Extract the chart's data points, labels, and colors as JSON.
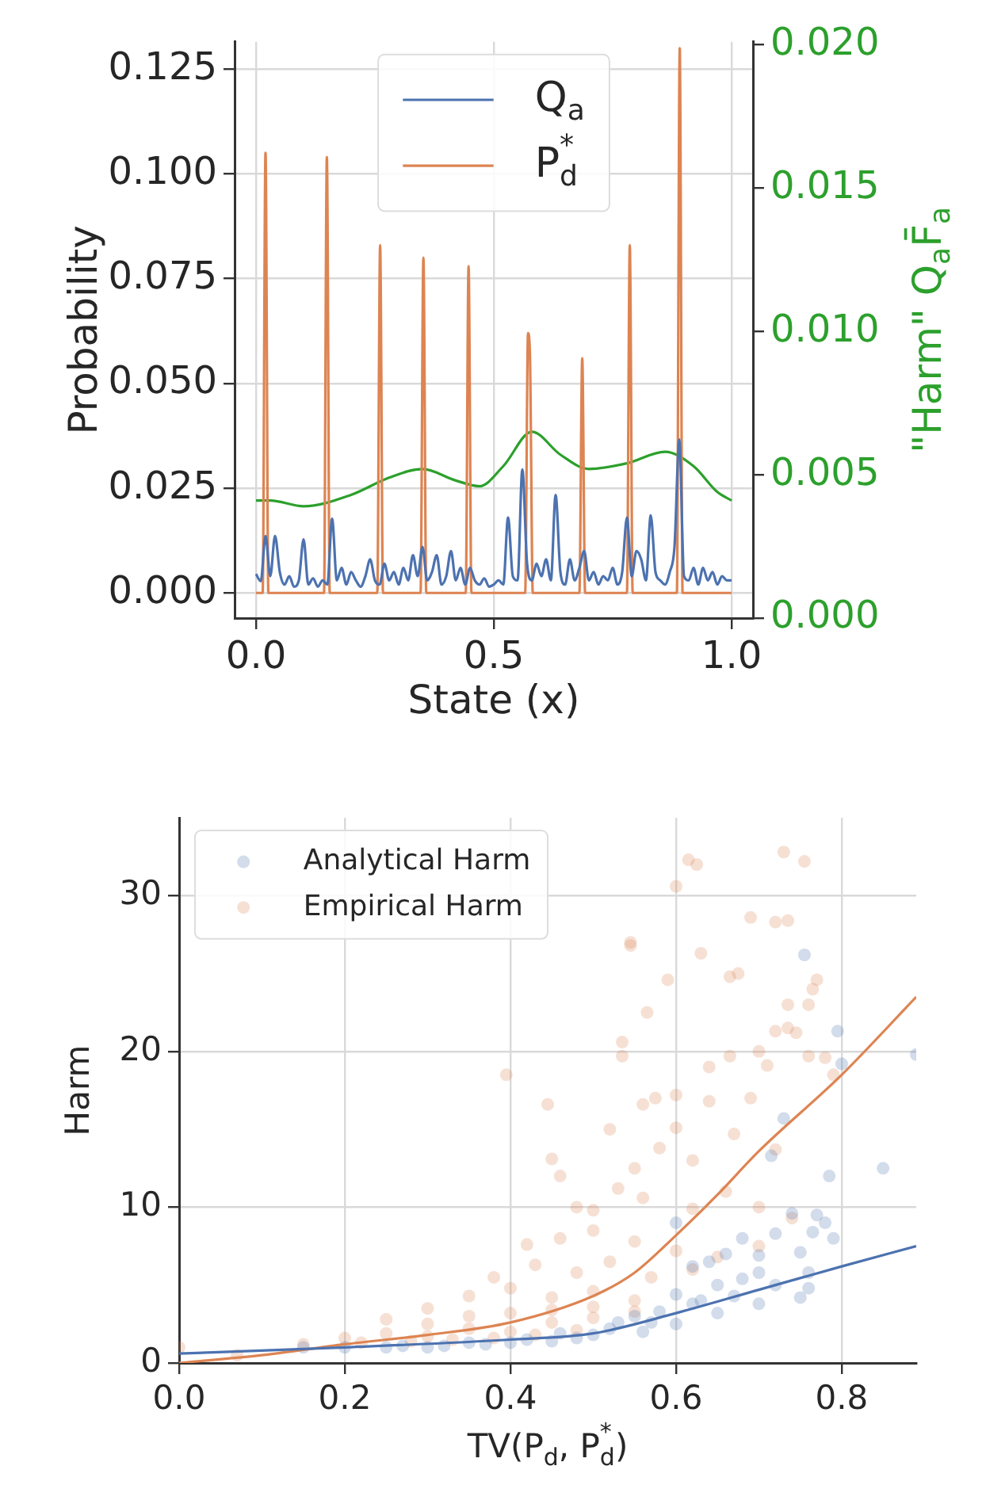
{
  "chart_data": [
    {
      "type": "line",
      "xlabel": "State (x)",
      "ylabel": "Probability",
      "y2label": "\"Harm\" Q$_{a}$F̄$_{a}$",
      "xlim": [
        -0.045,
        1.045
      ],
      "xticks": [
        {
          "value": 0,
          "label": "0.0"
        },
        {
          "value": 0.5,
          "label": "0.5"
        },
        {
          "value": 1,
          "label": "1.0"
        }
      ],
      "ylim": [
        -0.006,
        0.1315
      ],
      "yticks": [
        {
          "value": 0,
          "label": "0.000"
        },
        {
          "value": 0.025,
          "label": "0.025"
        },
        {
          "value": 0.05,
          "label": "0.050"
        },
        {
          "value": 0.075,
          "label": "0.075"
        },
        {
          "value": 0.1,
          "label": "0.100"
        },
        {
          "value": 0.125,
          "label": "0.125"
        }
      ],
      "y2lim": [
        0,
        0.0201
      ],
      "y2ticks": [
        {
          "value": 0,
          "label": "0.000"
        },
        {
          "value": 0.005,
          "label": "0.005"
        },
        {
          "value": 0.01,
          "label": "0.010"
        },
        {
          "value": 0.015,
          "label": "0.015"
        },
        {
          "value": 0.02,
          "label": "0.020"
        }
      ],
      "grid": true,
      "legend": "top",
      "marker": "none",
      "series": [
        {
          "name": "Q$_{a}$",
          "color": "#4c72b0",
          "x": [
            0,
            0.01,
            0.02,
            0.03,
            0.04,
            0.05,
            0.06,
            0.07,
            0.08,
            0.09,
            0.1,
            0.11,
            0.12,
            0.13,
            0.14,
            0.15,
            0.16,
            0.17,
            0.18,
            0.19,
            0.2,
            0.21,
            0.22,
            0.23,
            0.24,
            0.25,
            0.26,
            0.27,
            0.28,
            0.29,
            0.3,
            0.31,
            0.32,
            0.33,
            0.34,
            0.35,
            0.36,
            0.37,
            0.38,
            0.39,
            0.4,
            0.41,
            0.42,
            0.43,
            0.44,
            0.45,
            0.46,
            0.47,
            0.48,
            0.49,
            0.5,
            0.51,
            0.52,
            0.53,
            0.54,
            0.55,
            0.56,
            0.57,
            0.58,
            0.59,
            0.6,
            0.61,
            0.62,
            0.63,
            0.64,
            0.65,
            0.66,
            0.67,
            0.68,
            0.69,
            0.7,
            0.71,
            0.72,
            0.73,
            0.74,
            0.75,
            0.76,
            0.77,
            0.78,
            0.79,
            0.8,
            0.81,
            0.82,
            0.83,
            0.84,
            0.85,
            0.86,
            0.87,
            0.88,
            0.89,
            0.9,
            0.91,
            0.92,
            0.93,
            0.94,
            0.95,
            0.96,
            0.97,
            0.98,
            0.99,
            1
          ],
          "values": [
            0.0045,
            0.0028,
            0.0136,
            0.004,
            0.0136,
            0.005,
            0.002,
            0.004,
            0.0015,
            0.003,
            0.0128,
            0.002,
            0.0035,
            0.0015,
            0.003,
            0.002,
            0.0177,
            0.003,
            0.006,
            0.002,
            0.005,
            0.003,
            0.0015,
            0.004,
            0.008,
            0.003,
            0.002,
            0.007,
            0.003,
            0.005,
            0.002,
            0.006,
            0.003,
            0.009,
            0.004,
            0.011,
            0.003,
            0.005,
            0.009,
            0.002,
            0.004,
            0.01,
            0.003,
            0.006,
            0.002,
            0.006,
            0.003,
            0.002,
            0.0035,
            0.0015,
            0.002,
            0.003,
            0.002,
            0.018,
            0.004,
            0.003,
            0.0295,
            0.007,
            0.003,
            0.007,
            0.004,
            0.008,
            0.003,
            0.0234,
            0.005,
            0.002,
            0.008,
            0.003,
            0.006,
            0.01,
            0.003,
            0.005,
            0.002,
            0.004,
            0.003,
            0.006,
            0.002,
            0.005,
            0.018,
            0.004,
            0.01,
            0.008,
            0.003,
            0.0185,
            0.005,
            0.003,
            0.002,
            0.005,
            0.011,
            0.0366,
            0.004,
            0.003,
            0.006,
            0.002,
            0.006,
            0.003,
            0.005,
            0.002,
            0.004,
            0.003,
            0.003
          ]
        },
        {
          "name": "P$_{d}$$^{*}$",
          "color": "#dd8452",
          "x": [
            0,
            0.014,
            0.02,
            0.026,
            0.143,
            0.149,
            0.155,
            0.255,
            0.261,
            0.267,
            0.346,
            0.352,
            0.358,
            0.441,
            0.447,
            0.453,
            0.566,
            0.572,
            0.576,
            0.582,
            0.68,
            0.686,
            0.692,
            0.78,
            0.786,
            0.792,
            0.885,
            0.891,
            0.897,
            1
          ],
          "values": [
            0,
            0,
            0.105,
            0,
            0,
            0.104,
            0,
            0,
            0.083,
            0,
            0,
            0.08,
            0,
            0,
            0.078,
            0,
            0,
            0.062,
            0.057,
            0,
            0,
            0.056,
            0,
            0,
            0.083,
            0,
            0,
            0.13,
            0,
            0
          ]
        },
        {
          "color": "#2ca02c",
          "axis": "y2",
          "x": [
            0,
            0.03,
            0.1,
            0.2,
            0.28,
            0.35,
            0.42,
            0.47,
            0.52,
            0.58,
            0.64,
            0.7,
            0.78,
            0.86,
            0.92,
            0.97,
            1
          ],
          "values": [
            0.0041,
            0.0041,
            0.0039,
            0.0043,
            0.0049,
            0.0052,
            0.0048,
            0.0046,
            0.0053,
            0.0065,
            0.0057,
            0.0052,
            0.0054,
            0.0058,
            0.0053,
            0.0044,
            0.0041
          ]
        }
      ]
    },
    {
      "type": "scatter",
      "xlabel": "TV(P$_{d}$, P$_{d}$$^{*}$)",
      "ylabel": "Harm",
      "xlim": [
        0,
        0.89
      ],
      "xticks": [
        {
          "value": 0,
          "label": "0.0"
        },
        {
          "value": 0.2,
          "label": "0.2"
        },
        {
          "value": 0.4,
          "label": "0.4"
        },
        {
          "value": 0.6,
          "label": "0.6"
        },
        {
          "value": 0.8,
          "label": "0.8"
        }
      ],
      "ylim": [
        0,
        35
      ],
      "yticks": [
        0,
        10,
        20,
        30
      ],
      "grid": true,
      "legend": "top left",
      "series": [
        {
          "name": "Analytical Harm",
          "color": "#4c72b0",
          "marker": "circle",
          "x": [
            0.755,
            0.795,
            0.89,
            0.8,
            0.85,
            0.73,
            0.715,
            0.785,
            0.6,
            0.74,
            0.77,
            0.78,
            0.765,
            0.79,
            0.72,
            0.68,
            0.66,
            0.62,
            0.64,
            0.7,
            0.75,
            0.76,
            0.72,
            0.7,
            0.68,
            0.65,
            0.6,
            0.62,
            0.58,
            0.55,
            0.6,
            0.65,
            0.7,
            0.56,
            0.5,
            0.53,
            0.48,
            0.45,
            0.42,
            0.4,
            0.37,
            0.35,
            0.32,
            0.3,
            0.27,
            0.25,
            0.2,
            0.15,
            0.75,
            0.63,
            0.67,
            0.52,
            0.57,
            0.46,
            0.76
          ],
          "values": [
            26.2,
            21.3,
            19.8,
            19.2,
            12.5,
            15.7,
            13.3,
            12,
            9,
            9.6,
            9.5,
            9,
            8.4,
            8,
            8.3,
            8,
            7,
            6.2,
            6.5,
            6.9,
            7.1,
            5.8,
            5,
            5.8,
            5.4,
            5,
            4.4,
            3.8,
            3.3,
            3,
            2.5,
            3.2,
            3.8,
            2,
            1.8,
            2.6,
            1.6,
            1.4,
            1.5,
            1.3,
            1.2,
            1.3,
            1.1,
            1,
            1.1,
            1,
            1,
            1,
            4.2,
            4,
            4.3,
            2.2,
            2.6,
            1.9,
            4.8
          ]
        },
        {
          "name": "Empirical Harm",
          "color": "#dd8452",
          "marker": "circle",
          "x": [
            0.615,
            0.625,
            0.6,
            0.73,
            0.755,
            0.69,
            0.72,
            0.735,
            0.545,
            0.545,
            0.63,
            0.59,
            0.665,
            0.675,
            0.77,
            0.765,
            0.76,
            0.565,
            0.735,
            0.72,
            0.7,
            0.735,
            0.745,
            0.535,
            0.535,
            0.395,
            0.64,
            0.665,
            0.71,
            0.76,
            0.79,
            0.78,
            0.445,
            0.56,
            0.575,
            0.6,
            0.64,
            0.69,
            0.52,
            0.6,
            0.67,
            0.72,
            0.45,
            0.46,
            0.55,
            0.58,
            0.62,
            0.53,
            0.48,
            0.5,
            0.56,
            0.62,
            0.66,
            0.7,
            0.74,
            0.42,
            0.46,
            0.5,
            0.55,
            0.6,
            0.65,
            0.7,
            0.38,
            0.43,
            0.48,
            0.52,
            0.57,
            0.62,
            0.3,
            0.35,
            0.4,
            0.45,
            0.5,
            0.55,
            0.25,
            0.3,
            0.35,
            0.4,
            0.45,
            0.5,
            0.2,
            0.25,
            0.3,
            0.35,
            0.4,
            0.45,
            0.5,
            0.55,
            0.15,
            0.22,
            0.28,
            0.33,
            0.38,
            0.43,
            0.48,
            0,
            0.07
          ],
          "values": [
            32.3,
            32,
            30.6,
            32.8,
            32.2,
            28.6,
            28.3,
            28.4,
            27,
            26.8,
            26.3,
            24.6,
            24.8,
            25,
            24.6,
            24,
            23,
            22.5,
            23,
            21.3,
            20,
            21.5,
            21.2,
            20.6,
            19.7,
            18.5,
            19,
            19.7,
            19.1,
            19.7,
            18.5,
            19.6,
            16.6,
            16.6,
            17,
            17.2,
            16.8,
            17,
            15,
            15.1,
            14.7,
            13.7,
            13.1,
            12,
            12.5,
            13.8,
            13,
            11.2,
            10,
            9.8,
            10.6,
            9.9,
            11,
            10,
            9.3,
            7.6,
            8,
            8.5,
            7.8,
            7.2,
            6.8,
            7.5,
            5.5,
            6.3,
            5.8,
            6.5,
            5.5,
            6,
            3.5,
            4.3,
            4.8,
            4.2,
            4.6,
            4,
            2.8,
            2.5,
            3,
            3.2,
            3.4,
            3.6,
            1.6,
            1.9,
            1.7,
            2.2,
            2,
            2.6,
            2.9,
            3.3,
            1.2,
            1.3,
            1.4,
            1.5,
            1.6,
            1.8,
            2.1,
            1,
            0.5
          ]
        },
        {
          "type": "line",
          "color": "#4c72b0",
          "marker": "none",
          "x": [
            0,
            0.2,
            0.4,
            0.5,
            0.6,
            0.7,
            0.8,
            0.89
          ],
          "values": [
            0.6,
            1,
            1.5,
            1.9,
            3.2,
            4.7,
            6.2,
            7.5
          ]
        },
        {
          "type": "line",
          "color": "#dd8452",
          "marker": "none",
          "x": [
            0,
            0.1,
            0.2,
            0.3,
            0.4,
            0.5,
            0.55,
            0.6,
            0.65,
            0.7,
            0.8,
            0.89
          ],
          "values": [
            0,
            0.5,
            1.2,
            1.8,
            2.6,
            4.3,
            5.8,
            8.2,
            10.8,
            13.6,
            18.5,
            23.5
          ]
        }
      ]
    }
  ]
}
